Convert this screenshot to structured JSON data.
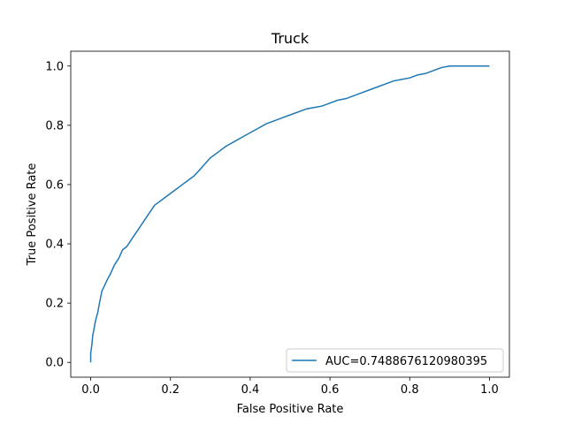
{
  "chart_data": {
    "type": "line",
    "title": "Truck",
    "xlabel": "False Positive Rate",
    "ylabel": "True Positive Rate",
    "xlim": [
      -0.05,
      1.05
    ],
    "ylim": [
      -0.05,
      1.05
    ],
    "xticks": [
      0.0,
      0.2,
      0.4,
      0.6,
      0.8,
      1.0
    ],
    "yticks": [
      0.0,
      0.2,
      0.4,
      0.6,
      0.8,
      1.0
    ],
    "xtick_labels": [
      "0.0",
      "0.2",
      "0.4",
      "0.6",
      "0.8",
      "1.0"
    ],
    "ytick_labels": [
      "0.0",
      "0.2",
      "0.4",
      "0.6",
      "0.8",
      "1.0"
    ],
    "grid": false,
    "legend_position": "lower-right",
    "series": [
      {
        "name": "AUC=0.7488676120980395",
        "color": "#1f77b4",
        "x": [
          0.0,
          0.0,
          0.003,
          0.005,
          0.008,
          0.012,
          0.018,
          0.022,
          0.028,
          0.035,
          0.042,
          0.05,
          0.06,
          0.07,
          0.08,
          0.09,
          0.1,
          0.11,
          0.12,
          0.13,
          0.14,
          0.15,
          0.16,
          0.17,
          0.18,
          0.19,
          0.2,
          0.21,
          0.22,
          0.23,
          0.24,
          0.25,
          0.26,
          0.27,
          0.28,
          0.29,
          0.3,
          0.32,
          0.34,
          0.36,
          0.38,
          0.4,
          0.42,
          0.44,
          0.46,
          0.48,
          0.5,
          0.52,
          0.54,
          0.56,
          0.58,
          0.6,
          0.62,
          0.64,
          0.66,
          0.68,
          0.7,
          0.72,
          0.74,
          0.76,
          0.78,
          0.8,
          0.82,
          0.84,
          0.86,
          0.88,
          0.9,
          0.95,
          1.0
        ],
        "y": [
          0.0,
          0.03,
          0.06,
          0.09,
          0.11,
          0.14,
          0.17,
          0.2,
          0.24,
          0.26,
          0.28,
          0.3,
          0.33,
          0.35,
          0.38,
          0.39,
          0.41,
          0.43,
          0.45,
          0.47,
          0.49,
          0.51,
          0.53,
          0.54,
          0.55,
          0.56,
          0.57,
          0.58,
          0.59,
          0.6,
          0.61,
          0.62,
          0.63,
          0.645,
          0.66,
          0.675,
          0.69,
          0.71,
          0.73,
          0.745,
          0.76,
          0.775,
          0.79,
          0.805,
          0.815,
          0.825,
          0.835,
          0.845,
          0.855,
          0.86,
          0.865,
          0.875,
          0.885,
          0.89,
          0.9,
          0.91,
          0.92,
          0.93,
          0.94,
          0.95,
          0.955,
          0.96,
          0.97,
          0.975,
          0.985,
          0.995,
          1.0,
          1.0,
          1.0
        ]
      }
    ]
  }
}
